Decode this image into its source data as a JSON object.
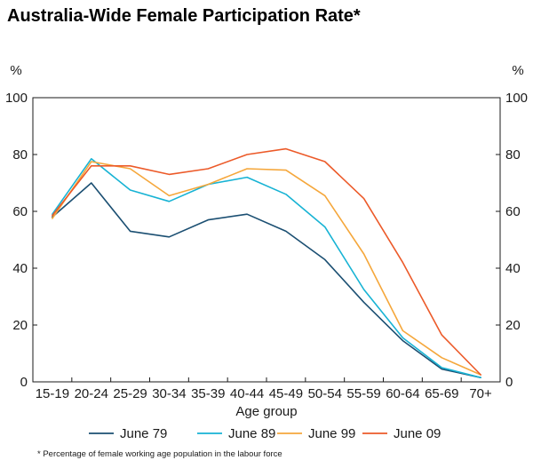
{
  "chart_data": {
    "type": "line",
    "title": "Australia-Wide Female Participation Rate*",
    "xlabel": "Age group",
    "ylabel_left": "%",
    "ylabel_right": "%",
    "ylim": [
      0,
      100
    ],
    "yticks": [
      0,
      20,
      40,
      60,
      80,
      100
    ],
    "ytick_labels": [
      "0",
      "20",
      "40",
      "60",
      "80",
      "100"
    ],
    "grid": false,
    "legend_position": "bottom",
    "footnote": "* Percentage of female working age population in the labour force",
    "categories": [
      "15-19",
      "20-24",
      "25-29",
      "30-34",
      "35-39",
      "40-44",
      "45-49",
      "50-54",
      "55-59",
      "60-64",
      "65-69",
      "70+"
    ],
    "series": [
      {
        "name": "June 79",
        "color": "#1b4f72",
        "values": [
          58,
          70,
          53,
          51,
          57,
          59,
          53,
          43,
          28,
          14.5,
          4.5,
          1.5
        ]
      },
      {
        "name": "June 89",
        "color": "#17b3d4",
        "values": [
          59,
          78.5,
          67.5,
          63.5,
          69.5,
          72,
          66,
          54.5,
          32.5,
          15.5,
          5,
          1.5
        ]
      },
      {
        "name": "June 99",
        "color": "#f5a73b",
        "values": [
          57.5,
          77.5,
          75,
          65.5,
          69.5,
          75,
          74.5,
          65.5,
          45,
          18,
          8.5,
          2.5
        ]
      },
      {
        "name": "June 09",
        "color": "#ec5a29",
        "values": [
          58.5,
          76,
          76,
          73,
          75,
          80,
          82,
          77.5,
          64.5,
          42,
          16.5,
          2.5
        ]
      }
    ]
  }
}
